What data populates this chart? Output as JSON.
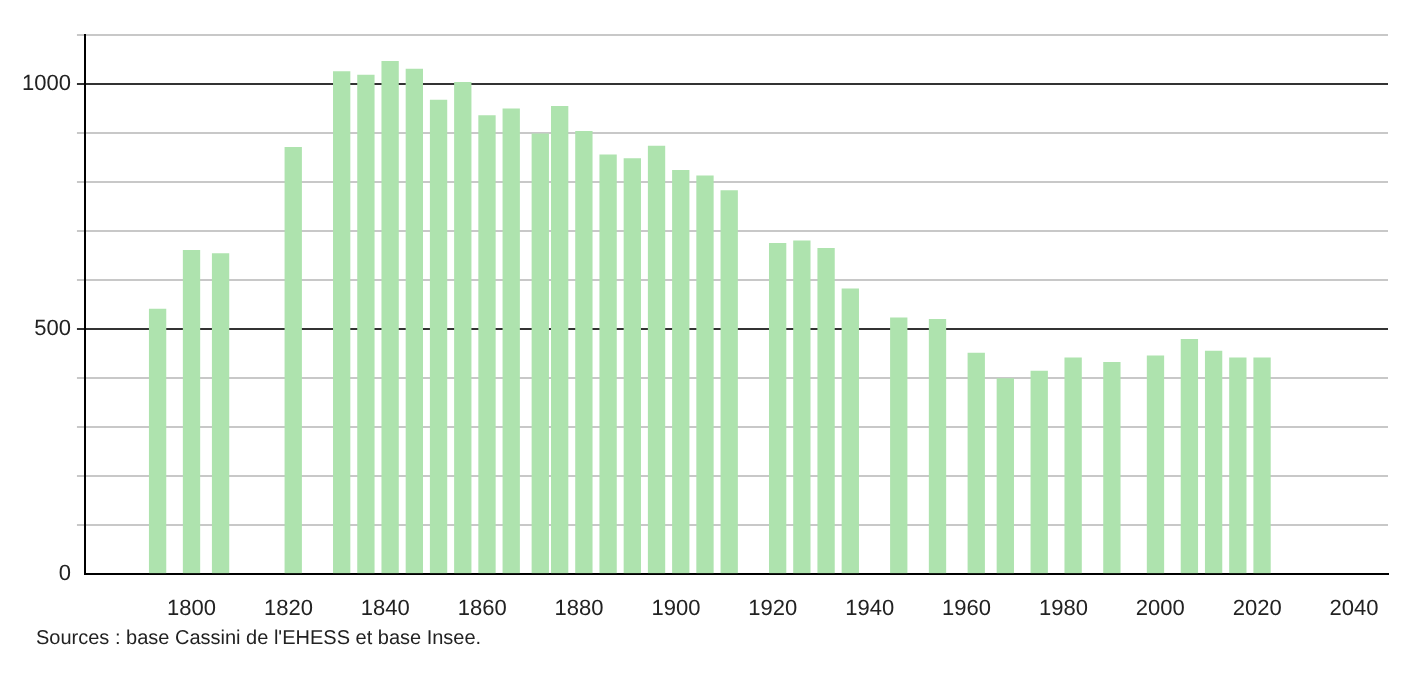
{
  "chart_data": {
    "type": "bar",
    "x": [
      1793,
      1800,
      1806,
      1821,
      1831,
      1836,
      1841,
      1846,
      1851,
      1856,
      1861,
      1866,
      1872,
      1876,
      1881,
      1886,
      1891,
      1896,
      1901,
      1906,
      1911,
      1921,
      1926,
      1931,
      1936,
      1946,
      1954,
      1962,
      1968,
      1975,
      1982,
      1990,
      1999,
      2006,
      2011,
      2016,
      2021
    ],
    "values": [
      540,
      660,
      653,
      870,
      1025,
      1018,
      1046,
      1030,
      967,
      1003,
      935,
      949,
      898,
      954,
      903,
      855,
      847,
      873,
      823,
      812,
      782,
      674,
      679,
      664,
      581,
      522,
      519,
      450,
      398,
      413,
      440,
      431,
      444,
      478,
      454,
      440,
      440
    ],
    "color": "#aee3ae",
    "xlim": [
      1778,
      2047
    ],
    "xticks": [
      1800,
      1820,
      1840,
      1860,
      1880,
      1900,
      1920,
      1940,
      1960,
      1980,
      2000,
      2020,
      2040
    ],
    "ylim": [
      0,
      1100
    ],
    "yticks": [
      0,
      {
        "value": 100,
        "label": null
      },
      {
        "value": 200,
        "label": null
      },
      {
        "value": 300,
        "label": null
      },
      {
        "value": 400,
        "label": null
      },
      500,
      {
        "value": 600,
        "label": null
      },
      {
        "value": 700,
        "label": null
      },
      {
        "value": 800,
        "label": null
      },
      {
        "value": 900,
        "label": null
      },
      1000,
      {
        "value": 1100,
        "label": null
      }
    ],
    "grid": "y",
    "legend": false,
    "annotations": [
      "Sources : base Cassini de l'EHESS et base Insee."
    ]
  }
}
